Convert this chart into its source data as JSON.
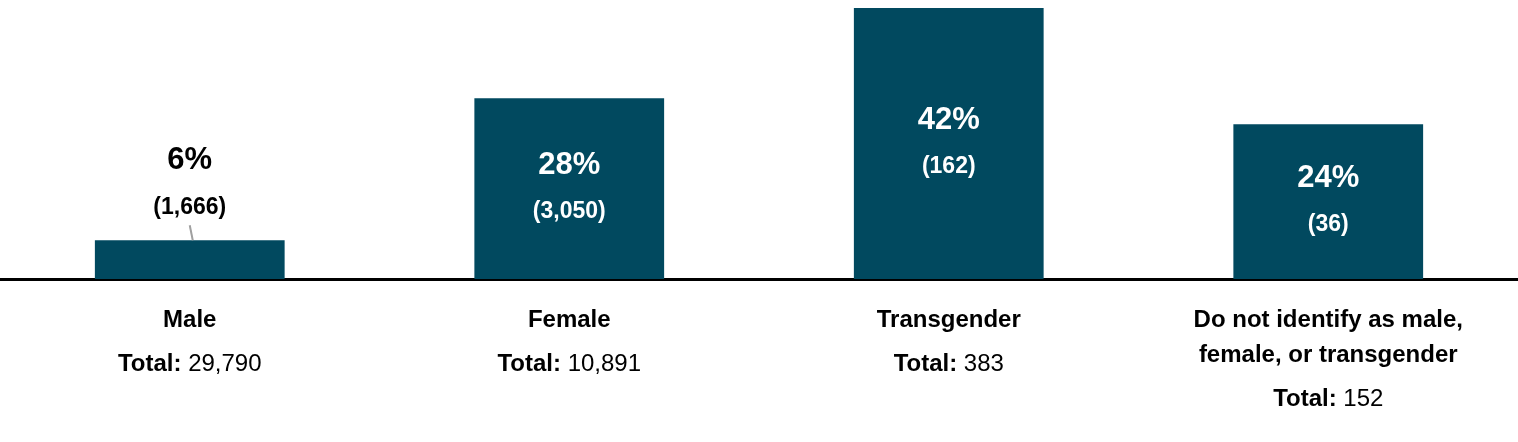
{
  "chart_data": {
    "type": "bar",
    "categories": [
      "Male",
      "Female",
      "Transgender",
      "Do not identify as male, female, or transgender"
    ],
    "values": [
      6,
      28,
      42,
      24
    ],
    "color": "#01495f",
    "value_labels": [
      "6%",
      "28%",
      "42%",
      "24%"
    ],
    "annotations": [
      "(1,666)",
      "(3,050)",
      "(162)",
      "(36)",
      "Total: 29,790",
      "Total: 10,891",
      "Total: 383",
      "Total: 152"
    ]
  }
}
